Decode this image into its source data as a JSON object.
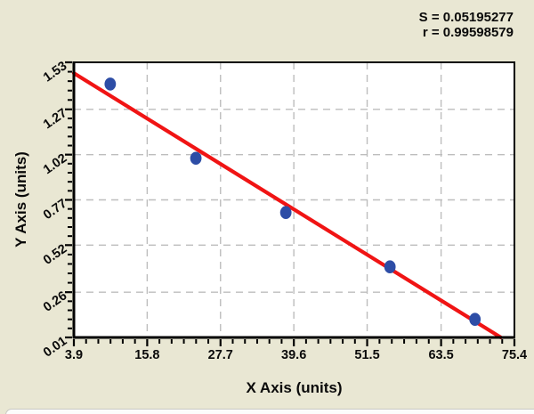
{
  "stats": {
    "s_value": "S = 0.05195277",
    "r_value": "r = 0.99598579"
  },
  "chart_data": {
    "type": "scatter",
    "title": "",
    "xlabel": "X Axis (units)",
    "ylabel": "Y Axis (units)",
    "xlim": [
      3.9,
      75.4
    ],
    "ylim": [
      0.01,
      1.53
    ],
    "x_ticks": [
      3.9,
      15.8,
      27.7,
      39.6,
      51.5,
      63.5,
      75.4
    ],
    "x_tick_labels": [
      "3.9",
      "15.8",
      "27.7",
      "39.6",
      "51.5",
      "63.5",
      "75.4"
    ],
    "y_ticks": [
      0.01,
      0.26,
      0.52,
      0.77,
      1.02,
      1.27,
      1.53
    ],
    "y_tick_labels": [
      "0.01",
      "0.26",
      "0.52",
      "0.77",
      "1.02",
      "1.27",
      "1.53"
    ],
    "x_minor_divisions": 6,
    "y_minor_divisions": 5,
    "grid": true,
    "legend": false,
    "points": [
      {
        "x": 9.8,
        "y": 1.41
      },
      {
        "x": 23.7,
        "y": 1.0
      },
      {
        "x": 38.3,
        "y": 0.7
      },
      {
        "x": 55.2,
        "y": 0.4
      },
      {
        "x": 69.0,
        "y": 0.11
      }
    ],
    "fit_line": {
      "x1": 3.9,
      "y1": 1.47,
      "x2": 73.2,
      "y2": 0.01
    },
    "annotations": [
      "S = 0.05195277",
      "r = 0.99598579"
    ],
    "colors": {
      "background": "#e9e7d3",
      "plot_background": "#ffffff",
      "axis": "#000000",
      "grid": "#bdbdbd",
      "point": "#2d4da6",
      "fit_line": "#f01414",
      "text": "#0a0a0a"
    }
  }
}
